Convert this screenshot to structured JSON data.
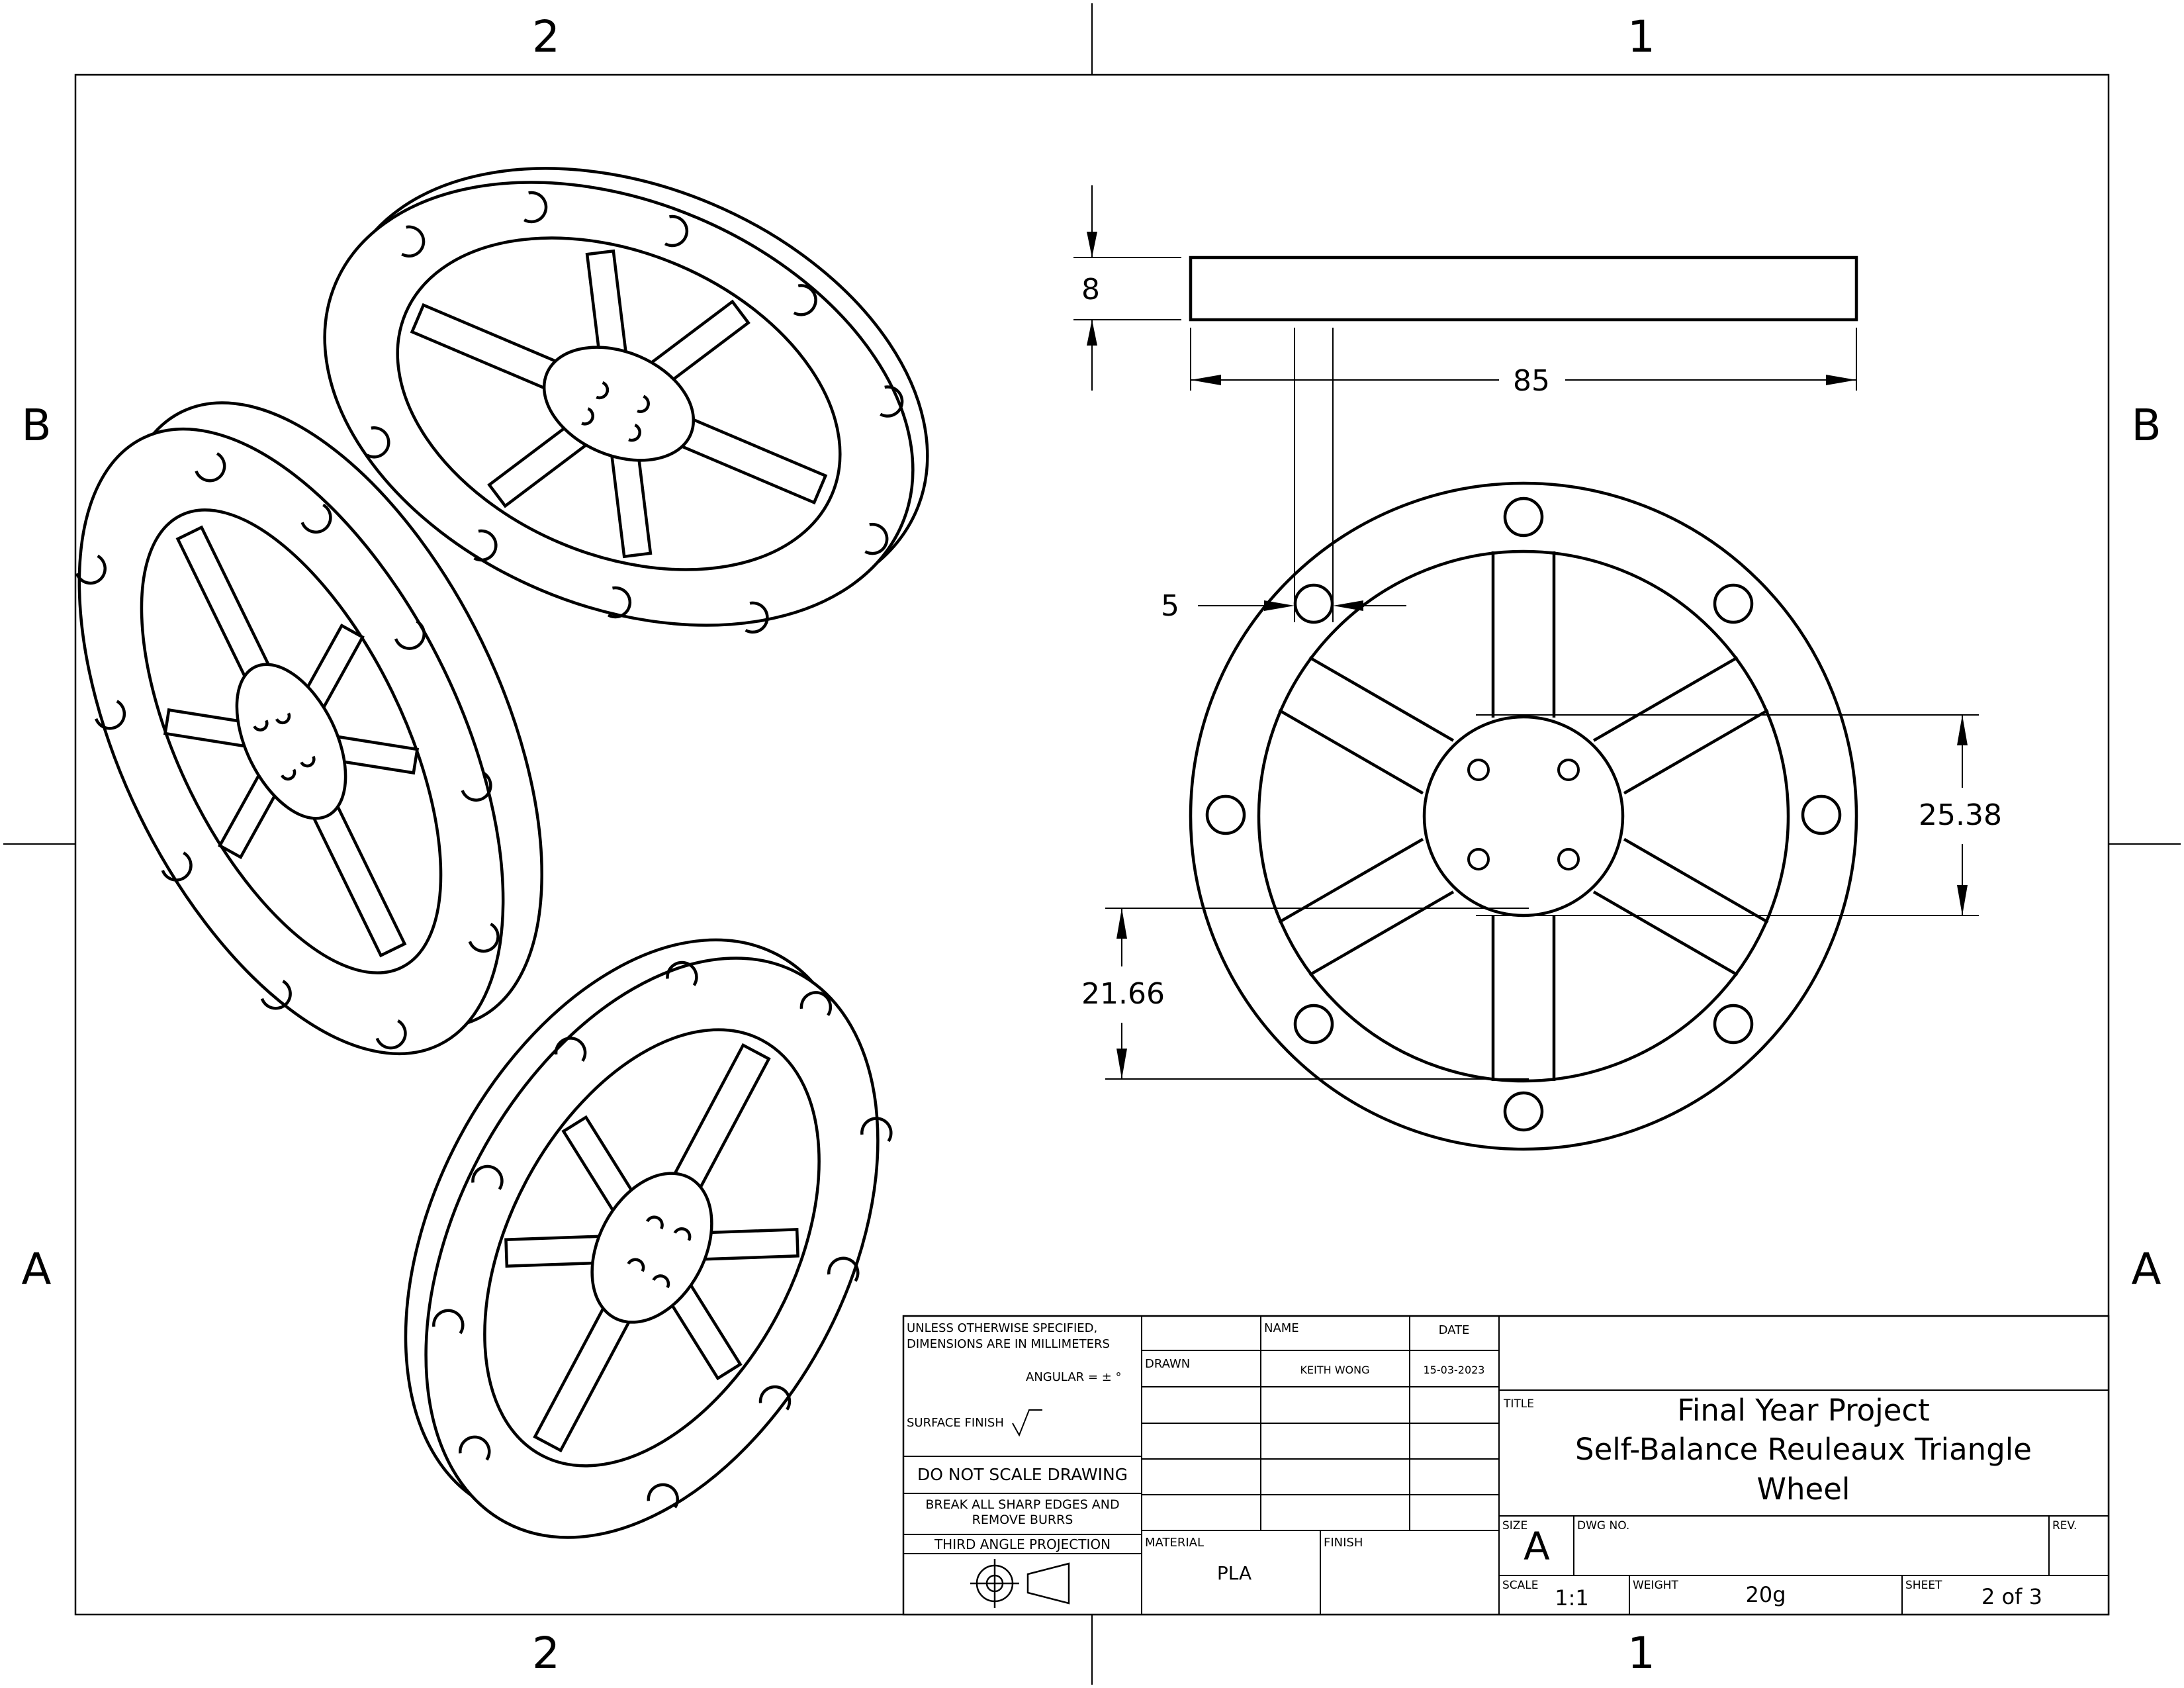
{
  "zones": {
    "top": [
      "2",
      "1"
    ],
    "bottom": [
      "2",
      "1"
    ],
    "left": [
      "B",
      "A"
    ],
    "right": [
      "B",
      "A"
    ]
  },
  "dimensions": {
    "thickness": "8",
    "diameter": "85",
    "bolt_hole": "5",
    "upper_offset": "25.38",
    "lower_offset": "21.66"
  },
  "title_block": {
    "general_note_1": "UNLESS OTHERWISE SPECIFIED,",
    "general_note_2": "DIMENSIONS ARE IN MILLIMETERS",
    "angular": "ANGULAR = ± °",
    "surface_finish": "SURFACE FINISH",
    "do_not_scale": "DO NOT SCALE DRAWING",
    "break_edges_1": "BREAK ALL SHARP EDGES AND",
    "break_edges_2": "REMOVE BURRS",
    "projection": "THIRD ANGLE PROJECTION",
    "name_header": "NAME",
    "date_header": "DATE",
    "drawn_label": "DRAWN",
    "drawn_name": "KEITH WONG",
    "drawn_date": "15-03-2023",
    "material_label": "MATERIAL",
    "material": "PLA",
    "finish_label": "FINISH",
    "title_label": "TITLE",
    "title_line1": "Final Year Project",
    "title_line2": "Self-Balance Reuleaux Triangle",
    "title_line3": "Wheel",
    "size_label": "SIZE",
    "size": "A",
    "dwg_no_label": "DWG NO.",
    "rev_label": "REV.",
    "scale_label": "SCALE",
    "scale": "1:1",
    "weight_label": "WEIGHT",
    "weight": "20g",
    "sheet_label": "SHEET",
    "sheet": "2 of 3"
  }
}
